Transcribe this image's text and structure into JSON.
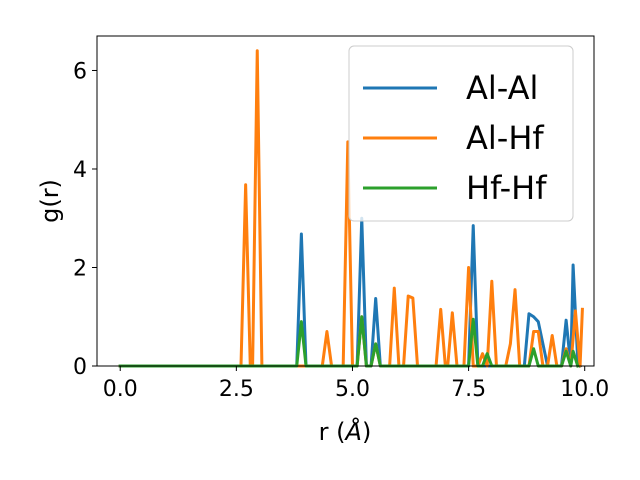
{
  "chart_data": {
    "type": "line",
    "xlabel_prefix": "r (",
    "xlabel_unit": "Å",
    "xlabel_suffix": ")",
    "ylabel": "g(r)",
    "xlim": [
      -0.5,
      10.2
    ],
    "ylim": [
      0,
      6.7
    ],
    "xticks": [
      0.0,
      2.5,
      5.0,
      7.5,
      10.0
    ],
    "xtick_labels": [
      "0.0",
      "2.5",
      "5.0",
      "7.5",
      "10.0"
    ],
    "yticks": [
      0,
      2,
      4,
      6
    ],
    "ytick_labels": [
      "0",
      "2",
      "4",
      "6"
    ],
    "grid": false,
    "legend_position": "top-right",
    "series": [
      {
        "name": "Al-Al",
        "color": "#1f77b4",
        "points": [
          [
            0.0,
            0
          ],
          [
            3.8,
            0
          ],
          [
            3.9,
            2.68
          ],
          [
            4.0,
            0
          ],
          [
            5.1,
            0
          ],
          [
            5.2,
            3.0
          ],
          [
            5.3,
            0
          ],
          [
            5.4,
            0
          ],
          [
            5.5,
            1.37
          ],
          [
            5.6,
            0
          ],
          [
            7.5,
            0
          ],
          [
            7.6,
            2.85
          ],
          [
            7.7,
            0
          ],
          [
            8.7,
            0
          ],
          [
            8.8,
            1.06
          ],
          [
            8.9,
            1.0
          ],
          [
            9.0,
            0.9
          ],
          [
            9.2,
            0
          ],
          [
            9.5,
            0
          ],
          [
            9.6,
            0.93
          ],
          [
            9.7,
            0
          ],
          [
            9.75,
            2.05
          ],
          [
            9.85,
            0.1
          ],
          [
            9.9,
            0
          ]
        ]
      },
      {
        "name": "Al-Hf",
        "color": "#ff7f0e",
        "points": [
          [
            0.0,
            0
          ],
          [
            2.6,
            0
          ],
          [
            2.7,
            3.68
          ],
          [
            2.8,
            0
          ],
          [
            2.85,
            0
          ],
          [
            2.95,
            6.4
          ],
          [
            3.05,
            0
          ],
          [
            4.35,
            0
          ],
          [
            4.45,
            0.7
          ],
          [
            4.55,
            0
          ],
          [
            4.8,
            0
          ],
          [
            4.9,
            4.55
          ],
          [
            5.0,
            0
          ],
          [
            5.1,
            0
          ],
          [
            5.2,
            1.0
          ],
          [
            5.3,
            0
          ],
          [
            5.4,
            0
          ],
          [
            5.5,
            0.45
          ],
          [
            5.6,
            0
          ],
          [
            5.8,
            0
          ],
          [
            5.9,
            1.58
          ],
          [
            6.0,
            0
          ],
          [
            6.1,
            0
          ],
          [
            6.2,
            1.42
          ],
          [
            6.3,
            1.38
          ],
          [
            6.4,
            0
          ],
          [
            6.8,
            0
          ],
          [
            6.9,
            1.15
          ],
          [
            7.0,
            0
          ],
          [
            7.05,
            0
          ],
          [
            7.15,
            1.08
          ],
          [
            7.25,
            0
          ],
          [
            7.4,
            0
          ],
          [
            7.5,
            2.0
          ],
          [
            7.6,
            0
          ],
          [
            7.7,
            0
          ],
          [
            7.8,
            0.25
          ],
          [
            7.9,
            0
          ],
          [
            8.0,
            1.72
          ],
          [
            8.1,
            0
          ],
          [
            8.3,
            0
          ],
          [
            8.4,
            0.45
          ],
          [
            8.5,
            1.55
          ],
          [
            8.6,
            0
          ],
          [
            8.8,
            0
          ],
          [
            8.9,
            0.7
          ],
          [
            9.0,
            0.7
          ],
          [
            9.1,
            0
          ],
          [
            9.2,
            0
          ],
          [
            9.3,
            0.62
          ],
          [
            9.4,
            0
          ],
          [
            9.5,
            0
          ],
          [
            9.6,
            0.35
          ],
          [
            9.7,
            0
          ],
          [
            9.8,
            1.12
          ],
          [
            9.9,
            0
          ],
          [
            9.95,
            1.15
          ]
        ]
      },
      {
        "name": "Hf-Hf",
        "color": "#2ca02c",
        "points": [
          [
            0.0,
            0
          ],
          [
            3.8,
            0
          ],
          [
            3.9,
            0.9
          ],
          [
            4.0,
            0
          ],
          [
            5.1,
            0
          ],
          [
            5.2,
            1.0
          ],
          [
            5.3,
            0
          ],
          [
            5.4,
            0
          ],
          [
            5.5,
            0.45
          ],
          [
            5.6,
            0
          ],
          [
            7.5,
            0
          ],
          [
            7.6,
            0.95
          ],
          [
            7.7,
            0
          ],
          [
            7.8,
            0
          ],
          [
            7.9,
            0.25
          ],
          [
            8.0,
            0
          ],
          [
            8.8,
            0
          ],
          [
            8.9,
            0.35
          ],
          [
            9.0,
            0
          ],
          [
            9.5,
            0
          ],
          [
            9.6,
            0.3
          ],
          [
            9.7,
            0
          ],
          [
            9.75,
            0.3
          ],
          [
            9.85,
            0
          ]
        ]
      }
    ]
  }
}
